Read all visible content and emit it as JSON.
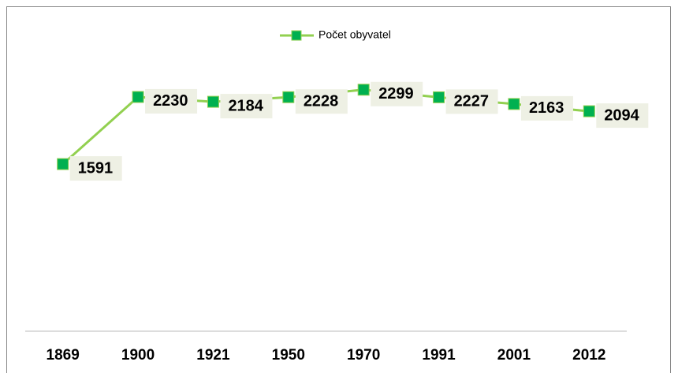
{
  "chart_data": {
    "type": "line",
    "categories": [
      "1869",
      "1900",
      "1921",
      "1950",
      "1970",
      "1991",
      "2001",
      "2012"
    ],
    "series": [
      {
        "name": "Počet obyvatel",
        "color": "#92d050",
        "marker_color": "#00b050",
        "values": [
          1591,
          2230,
          2184,
          2228,
          2299,
          2227,
          2163,
          2094
        ]
      }
    ],
    "ylim": [
      0,
      2500
    ],
    "legend": "top",
    "data_labels": true
  }
}
